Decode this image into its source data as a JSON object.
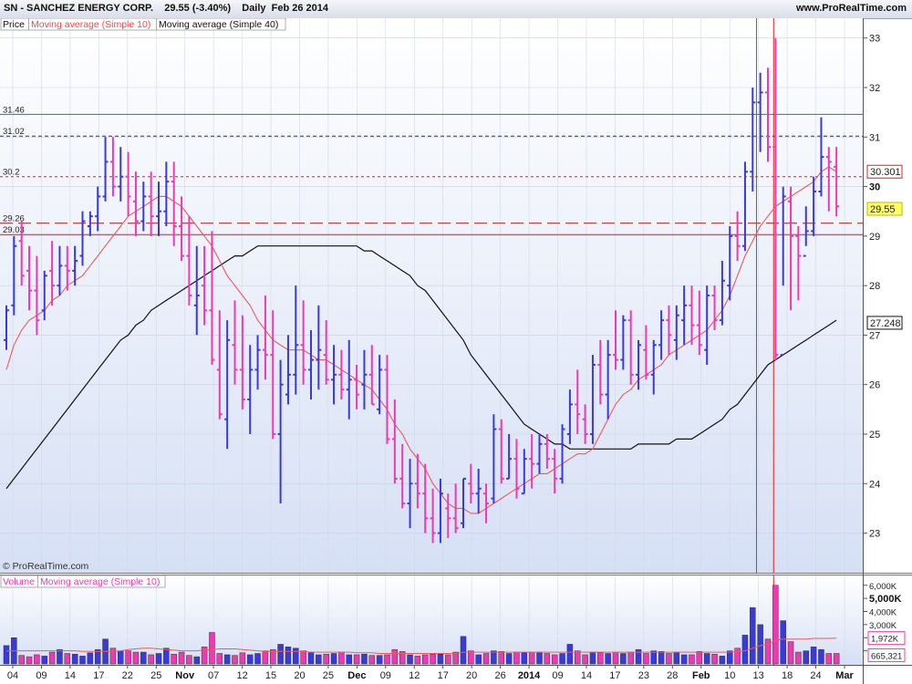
{
  "header": {
    "symbol_text": "SN - SANCHEZ ENERGY CORP.",
    "price_text": "29.55 (-3.40%)",
    "period_text": "Daily  Feb 26 2014",
    "site": "www.ProRealTime.com"
  },
  "legend": {
    "price": "Price",
    "ma10": "Moving average (Simple 10)",
    "ma40": "Moving average (Simple 40)",
    "volume": "Volume",
    "vol_ma": "Moving average (Simple 10)"
  },
  "watermark": "© ProRealTime.com",
  "colors": {
    "up": "#3a3adc",
    "down": "#ee3ab0",
    "ma10": "#ee5a5a",
    "ma40": "#111111",
    "green_line": "#2e8b2e",
    "red_line": "#e02020"
  },
  "chart_data": {
    "type": "ohlc",
    "ylim": [
      22.2,
      33.4
    ],
    "y_ticks": [
      {
        "v": 33,
        "t": "33"
      },
      {
        "v": 32,
        "t": "32"
      },
      {
        "v": 31,
        "t": "31"
      },
      {
        "v": 30,
        "t": "30"
      },
      {
        "v": 29,
        "t": "29"
      },
      {
        "v": 28,
        "t": "28"
      },
      {
        "v": 27,
        "t": "27"
      },
      {
        "v": 26,
        "t": "26"
      },
      {
        "v": 25,
        "t": "25"
      },
      {
        "v": 24,
        "t": "24"
      },
      {
        "v": 23,
        "t": "23"
      }
    ],
    "bold_y_tick": "30",
    "x_labels": [
      "04",
      "09",
      "14",
      "17",
      "22",
      "25",
      "Nov",
      "07",
      "12",
      "15",
      "20",
      "25",
      "Dec",
      "09",
      "12",
      "17",
      "20",
      "26",
      "2014",
      "09",
      "14",
      "17",
      "23",
      "28",
      "Feb",
      "10",
      "13",
      "18",
      "24",
      "Mar"
    ],
    "bold_x_labels": [
      "Nov",
      "Dec",
      "2014",
      "Feb",
      "Mar"
    ],
    "bars": [
      [
        26.9,
        27.6,
        26.7,
        27.5
      ],
      [
        27.6,
        29.0,
        27.4,
        28.8
      ],
      [
        28.9,
        29.3,
        28.0,
        28.2
      ],
      [
        28.3,
        28.8,
        27.5,
        27.9
      ],
      [
        27.9,
        28.6,
        27.0,
        27.3
      ],
      [
        27.5,
        28.3,
        27.3,
        28.2
      ],
      [
        28.3,
        28.9,
        27.6,
        28.0
      ],
      [
        28.0,
        28.8,
        27.8,
        28.4
      ],
      [
        28.4,
        28.8,
        27.9,
        28.3
      ],
      [
        28.3,
        28.8,
        28.0,
        28.5
      ],
      [
        28.6,
        29.5,
        28.4,
        29.3
      ],
      [
        29.2,
        29.5,
        29.0,
        29.4
      ],
      [
        29.4,
        30.0,
        29.1,
        29.8
      ],
      [
        29.8,
        31.0,
        29.7,
        30.5
      ],
      [
        30.5,
        31.0,
        29.8,
        30.0
      ],
      [
        30.0,
        30.8,
        29.7,
        30.2
      ],
      [
        30.2,
        30.7,
        29.4,
        29.8
      ],
      [
        29.7,
        30.3,
        29.0,
        29.3
      ],
      [
        29.3,
        30.1,
        29.1,
        29.8
      ],
      [
        29.8,
        30.3,
        29.0,
        29.4
      ],
      [
        29.4,
        30.1,
        29.0,
        29.5
      ],
      [
        29.5,
        30.5,
        29.2,
        30.1
      ],
      [
        30.1,
        30.5,
        28.8,
        29.2
      ],
      [
        29.2,
        29.8,
        28.5,
        28.6
      ],
      [
        28.6,
        29.4,
        27.6,
        27.8
      ],
      [
        27.6,
        28.8,
        27.0,
        27.8
      ],
      [
        28.0,
        28.8,
        27.2,
        27.5
      ],
      [
        27.5,
        29.1,
        26.4,
        26.5
      ],
      [
        26.3,
        27.5,
        25.3,
        25.4
      ],
      [
        25.3,
        27.3,
        24.7,
        26.9
      ],
      [
        26.8,
        27.7,
        26.0,
        26.3
      ],
      [
        26.3,
        27.4,
        25.5,
        25.7
      ],
      [
        25.7,
        26.8,
        25.0,
        26.3
      ],
      [
        26.3,
        27.0,
        25.9,
        26.7
      ],
      [
        26.7,
        27.8,
        26.1,
        26.6
      ],
      [
        26.6,
        27.5,
        24.9,
        25.0
      ],
      [
        25.0,
        26.5,
        23.6,
        26.0
      ],
      [
        25.8,
        27.0,
        25.6,
        26.2
      ],
      [
        26.2,
        28.0,
        25.8,
        26.8
      ],
      [
        26.8,
        27.7,
        26.0,
        26.3
      ],
      [
        26.3,
        27.1,
        25.7,
        26.5
      ],
      [
        26.5,
        27.6,
        25.9,
        26.7
      ],
      [
        26.6,
        27.3,
        26.0,
        26.1
      ],
      [
        26.1,
        26.8,
        25.6,
        26.2
      ],
      [
        26.2,
        26.7,
        25.7,
        25.9
      ],
      [
        25.9,
        26.9,
        25.3,
        26.1
      ],
      [
        26.1,
        26.4,
        25.5,
        25.8
      ],
      [
        26.0,
        26.7,
        25.5,
        26.2
      ],
      [
        26.2,
        26.8,
        25.6,
        25.6
      ],
      [
        25.5,
        26.6,
        25.4,
        26.3
      ],
      [
        26.3,
        26.6,
        24.8,
        24.9
      ],
      [
        24.9,
        25.7,
        24.0,
        24.1
      ],
      [
        24.1,
        24.8,
        23.5,
        23.6
      ],
      [
        23.6,
        24.5,
        23.1,
        24.0
      ],
      [
        24.0,
        24.6,
        23.5,
        23.8
      ],
      [
        23.8,
        24.4,
        23.0,
        23.3
      ],
      [
        23.3,
        23.9,
        22.8,
        23.0
      ],
      [
        23.0,
        24.1,
        22.8,
        23.8
      ],
      [
        23.5,
        23.8,
        22.9,
        23.3
      ],
      [
        23.3,
        24.0,
        23.0,
        23.1
      ],
      [
        23.2,
        24.1,
        23.1,
        24.1
      ],
      [
        24.0,
        24.4,
        23.6,
        23.8
      ],
      [
        23.8,
        24.3,
        23.4,
        23.9
      ],
      [
        23.8,
        24.0,
        23.2,
        23.6
      ],
      [
        23.7,
        25.4,
        23.6,
        25.1
      ],
      [
        25.1,
        25.3,
        24.0,
        24.1
      ],
      [
        24.1,
        25.0,
        24.1,
        24.5
      ],
      [
        24.5,
        24.9,
        23.7,
        23.9
      ],
      [
        23.8,
        24.7,
        23.8,
        24.5
      ],
      [
        24.5,
        25.0,
        23.9,
        24.4
      ],
      [
        24.4,
        25.0,
        24.2,
        24.8
      ],
      [
        24.8,
        25.0,
        24.3,
        24.5
      ],
      [
        24.5,
        24.7,
        23.8,
        24.1
      ],
      [
        24.1,
        25.2,
        24.0,
        25.1
      ],
      [
        25.0,
        25.9,
        24.8,
        25.6
      ],
      [
        25.6,
        26.3,
        25.0,
        25.4
      ],
      [
        25.3,
        25.6,
        24.8,
        25.0
      ],
      [
        25.0,
        26.6,
        24.8,
        26.4
      ],
      [
        26.4,
        26.9,
        25.6,
        25.8
      ],
      [
        25.8,
        26.9,
        25.3,
        26.6
      ],
      [
        26.6,
        27.5,
        26.3,
        26.5
      ],
      [
        26.5,
        27.4,
        26.3,
        27.3
      ],
      [
        27.3,
        27.5,
        26.0,
        26.2
      ],
      [
        26.2,
        26.9,
        25.9,
        26.8
      ],
      [
        26.7,
        27.2,
        26.1,
        26.2
      ],
      [
        26.2,
        26.9,
        25.8,
        26.8
      ],
      [
        26.8,
        27.5,
        26.5,
        27.3
      ],
      [
        27.3,
        27.6,
        26.6,
        27.0
      ],
      [
        26.9,
        27.6,
        26.5,
        27.4
      ],
      [
        27.3,
        28.0,
        26.8,
        27.6
      ],
      [
        27.6,
        28.0,
        26.8,
        27.2
      ],
      [
        27.2,
        27.9,
        26.6,
        26.8
      ],
      [
        26.7,
        28.0,
        26.4,
        27.8
      ],
      [
        27.8,
        28.0,
        27.1,
        27.3
      ],
      [
        27.3,
        28.5,
        27.2,
        28.1
      ],
      [
        28.0,
        29.2,
        27.7,
        29.0
      ],
      [
        29.0,
        29.5,
        28.5,
        28.8
      ],
      [
        28.8,
        30.5,
        28.7,
        30.3
      ],
      [
        30.3,
        32.0,
        29.9,
        31.7
      ],
      [
        31.7,
        32.3,
        30.7,
        31.9
      ],
      [
        31.9,
        32.4,
        30.5,
        30.8
      ],
      [
        30.8,
        33.0,
        26.5,
        26.6
      ],
      [
        26.6,
        30.0,
        28.0,
        29.8
      ],
      [
        29.7,
        30.0,
        27.5,
        29.0
      ],
      [
        29.0,
        29.2,
        27.7,
        28.6
      ],
      [
        28.6,
        29.6,
        28.8,
        29.1
      ],
      [
        29.1,
        30.2,
        29.0,
        29.9
      ],
      [
        29.9,
        31.4,
        29.8,
        30.6
      ],
      [
        30.6,
        30.8,
        29.5,
        30.5
      ],
      [
        30.4,
        30.8,
        29.4,
        29.6
      ]
    ],
    "ma10": [
      26.3,
      26.8,
      27.1,
      27.3,
      27.4,
      27.5,
      27.7,
      27.8,
      28.0,
      28.1,
      28.2,
      28.4,
      28.6,
      28.8,
      29.0,
      29.2,
      29.4,
      29.5,
      29.6,
      29.7,
      29.8,
      29.8,
      29.7,
      29.6,
      29.4,
      29.2,
      29.0,
      28.8,
      28.5,
      28.2,
      28.0,
      27.8,
      27.6,
      27.3,
      27.1,
      26.9,
      26.8,
      26.7,
      26.7,
      26.7,
      26.6,
      26.5,
      26.5,
      26.4,
      26.3,
      26.2,
      26.1,
      26.0,
      25.9,
      25.7,
      25.5,
      25.2,
      25.0,
      24.7,
      24.5,
      24.3,
      24.0,
      23.8,
      23.6,
      23.5,
      23.5,
      23.4,
      23.4,
      23.5,
      23.6,
      23.7,
      23.8,
      23.9,
      24.0,
      24.1,
      24.2,
      24.2,
      24.3,
      24.4,
      24.5,
      24.6,
      24.6,
      24.7,
      25.0,
      25.3,
      25.6,
      25.8,
      25.9,
      26.1,
      26.2,
      26.3,
      26.4,
      26.6,
      26.7,
      26.8,
      26.9,
      27.0,
      27.1,
      27.3,
      27.5,
      27.8,
      28.2,
      28.6,
      28.9,
      29.2,
      29.4,
      29.6,
      29.7,
      29.8,
      29.9,
      30.0,
      30.1,
      30.3,
      30.4,
      30.3
    ],
    "ma40": [
      23.9,
      24.1,
      24.3,
      24.5,
      24.7,
      24.9,
      25.1,
      25.3,
      25.5,
      25.7,
      25.9,
      26.1,
      26.3,
      26.5,
      26.7,
      26.9,
      27.0,
      27.2,
      27.3,
      27.5,
      27.6,
      27.7,
      27.8,
      27.9,
      28.0,
      28.1,
      28.2,
      28.3,
      28.4,
      28.5,
      28.6,
      28.6,
      28.7,
      28.8,
      28.8,
      28.8,
      28.8,
      28.8,
      28.8,
      28.8,
      28.8,
      28.8,
      28.8,
      28.8,
      28.8,
      28.8,
      28.8,
      28.7,
      28.7,
      28.6,
      28.5,
      28.4,
      28.3,
      28.2,
      28.0,
      27.9,
      27.7,
      27.5,
      27.3,
      27.1,
      26.9,
      26.6,
      26.4,
      26.2,
      26.0,
      25.8,
      25.6,
      25.4,
      25.2,
      25.1,
      25.0,
      24.9,
      24.8,
      24.8,
      24.7,
      24.7,
      24.7,
      24.7,
      24.7,
      24.7,
      24.7,
      24.7,
      24.7,
      24.8,
      24.8,
      24.8,
      24.8,
      24.8,
      24.9,
      24.9,
      24.9,
      25.0,
      25.1,
      25.2,
      25.3,
      25.5,
      25.6,
      25.8,
      26.0,
      26.2,
      26.4,
      26.5,
      26.6,
      26.7,
      26.8,
      26.9,
      27.0,
      27.1,
      27.2,
      27.3
    ],
    "h_lines": [
      {
        "v": 31.46,
        "label": "31.46",
        "color": "#2e8b2e",
        "dash": ""
      },
      {
        "v": 31.02,
        "label": "31.02",
        "color": "#333333",
        "dash": "4,3"
      },
      {
        "v": 30.2,
        "label": "30.2",
        "color": "#e02020",
        "dash": "3,3"
      },
      {
        "v": 29.26,
        "label": "29.26",
        "color": "#b01010",
        "dash": "14,6"
      },
      {
        "v": 29.03,
        "label": "29.03",
        "color": "#e02020",
        "dash": ""
      }
    ],
    "price_markers": [
      {
        "v": 30.301,
        "text": "30.301",
        "color": "#e02020",
        "fill": "#ffffff"
      },
      {
        "v": 29.55,
        "text": "29.55",
        "color": "#bbbb00",
        "fill": "#ffff66"
      },
      {
        "v": 27.248,
        "text": "27.248",
        "color": "#111111",
        "fill": "#ffffff"
      }
    ],
    "volume": [
      1400,
      2000,
      650,
      550,
      700,
      600,
      900,
      1100,
      800,
      750,
      600,
      850,
      1100,
      1900,
      1200,
      1000,
      1000,
      900,
      900,
      700,
      800,
      1200,
      750,
      900,
      650,
      550,
      1300,
      2400,
      800,
      700,
      650,
      850,
      700,
      800,
      1000,
      1100,
      1500,
      1300,
      1200,
      1000,
      850,
      700,
      750,
      800,
      900,
      700,
      700,
      750,
      650,
      650,
      700,
      1100,
      950,
      700,
      600,
      700,
      750,
      750,
      700,
      900,
      2100,
      1000,
      700,
      800,
      1000,
      950,
      800,
      900,
      850,
      900,
      900,
      800,
      700,
      800,
      1500,
      1000,
      700,
      900,
      850,
      800,
      900,
      800,
      900,
      1100,
      800,
      1000,
      950,
      800,
      900,
      700,
      700,
      950,
      800,
      750,
      600,
      1000,
      1200,
      2200,
      4300,
      3000,
      1900,
      6000,
      3300,
      1700,
      900,
      1000,
      1300,
      1100,
      800,
      800
    ],
    "vol_ma": [
      1000,
      1000,
      1000,
      1000,
      1000,
      1000,
      1000,
      1000,
      1000,
      1000,
      950,
      950,
      950,
      950,
      950,
      1000,
      1100,
      1150,
      1200,
      1200,
      1150,
      1100,
      1050,
      1000,
      1000,
      1000,
      1050,
      1100,
      1150,
      1150,
      1150,
      1100,
      1050,
      1000,
      950,
      950,
      950,
      950,
      950,
      950,
      900,
      900,
      900,
      900,
      900,
      900,
      850,
      850,
      850,
      800,
      800,
      800,
      800,
      800,
      800,
      800,
      800,
      800,
      800,
      800,
      900,
      900,
      900,
      900,
      900,
      900,
      900,
      900,
      900,
      900,
      900,
      900,
      900,
      900,
      900,
      900,
      900,
      900,
      900,
      900,
      900,
      900,
      900,
      900,
      900,
      900,
      900,
      900,
      900,
      900,
      900,
      900,
      900,
      900,
      900,
      900,
      950,
      1000,
      1200,
      1400,
      1500,
      1800,
      1900,
      1900,
      1900,
      1900,
      1950,
      1950,
      1950,
      1972
    ],
    "vol_ticks": [
      "6,000K",
      "5,000K",
      "4,000K",
      "3,000K",
      "2,000K",
      "1,000K"
    ],
    "vol_markers": [
      {
        "v": 1972,
        "text": "1,972K"
      },
      {
        "v": 665.321,
        "text": "665,321"
      }
    ]
  }
}
